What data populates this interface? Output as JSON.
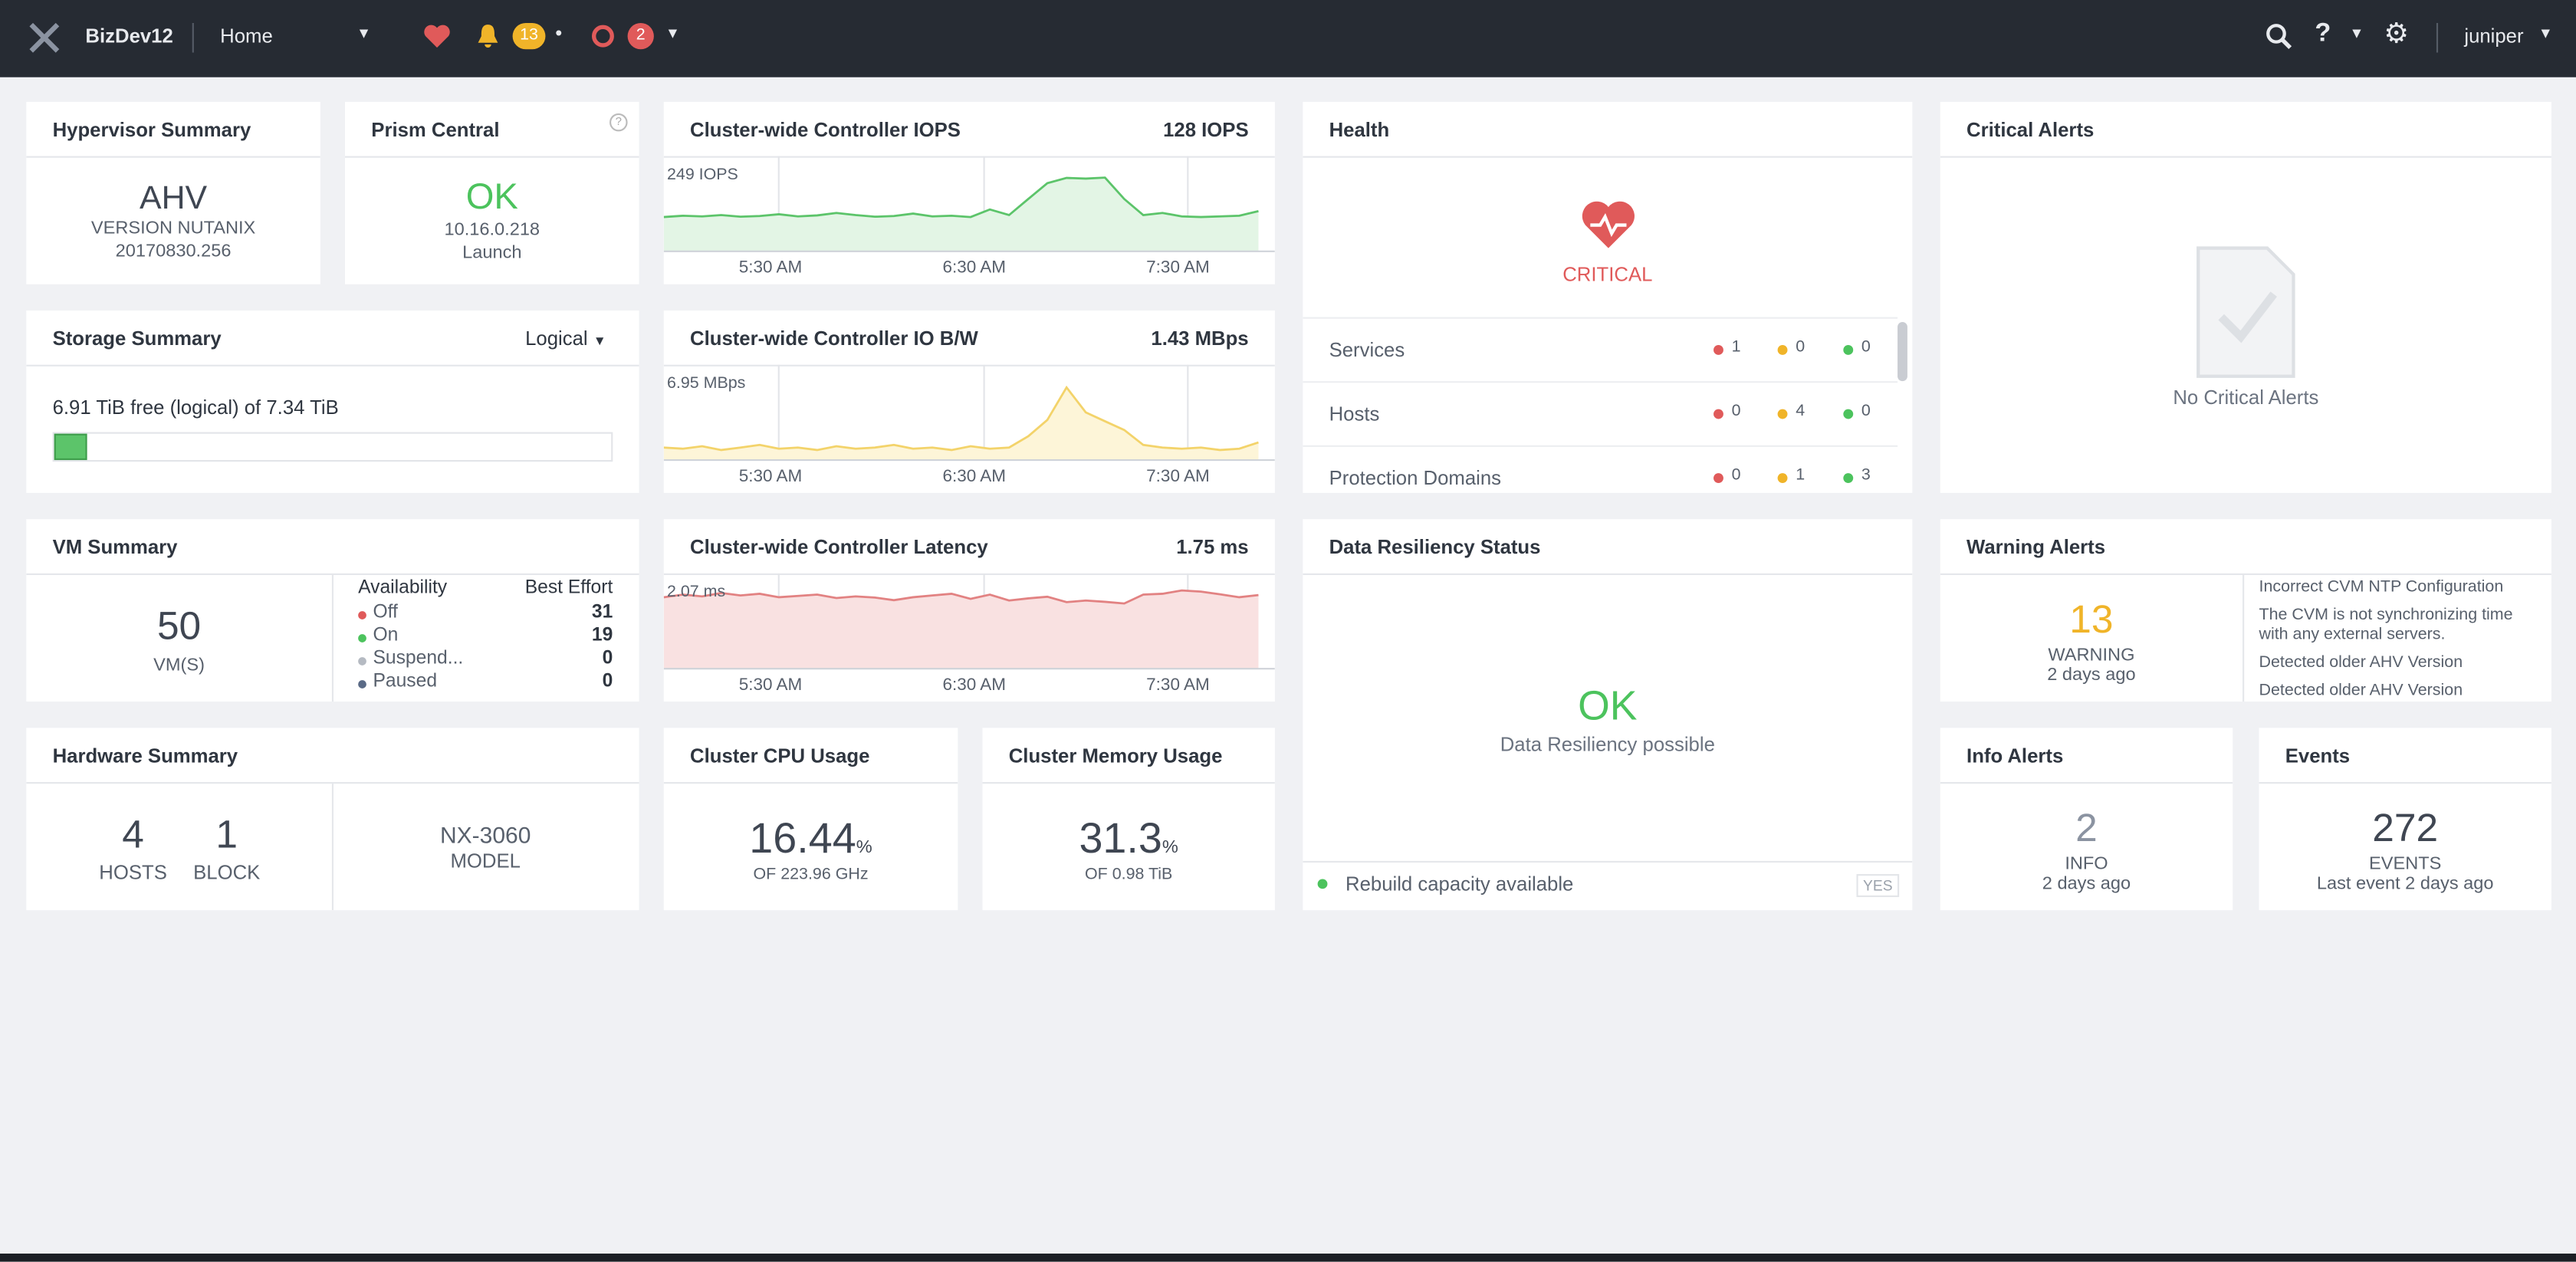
{
  "header": {
    "cluster": "BizDev12",
    "nav": "Home",
    "alerts_badge": "13",
    "errors_badge": "2",
    "user": "juniper"
  },
  "hypervisor": {
    "title": "Hypervisor Summary",
    "name": "AHV",
    "version": "VERSION NUTANIX",
    "build": "20170830.256"
  },
  "prism": {
    "title": "Prism Central",
    "status": "OK",
    "ip": "10.16.0.218",
    "action": "Launch"
  },
  "iops": {
    "title": "Cluster-wide Controller IOPS",
    "current": "128 IOPS",
    "max": {
      "value": 249,
      "label": "249 IOPS"
    },
    "times": [
      "5:30 AM",
      "6:30 AM",
      "7:30 AM"
    ],
    "values": [
      98,
      102,
      100,
      104,
      99,
      101,
      106,
      100,
      103,
      110,
      104,
      99,
      101,
      108,
      100,
      102,
      98,
      120,
      104,
      150,
      195,
      210,
      208,
      211,
      150,
      104,
      110,
      100,
      98,
      100,
      102,
      115
    ]
  },
  "bandwidth": {
    "title": "Cluster-wide Controller IO B/W",
    "current": "1.43 MBps",
    "max": {
      "value": 6.95,
      "label": "6.95 MBps"
    },
    "times": [
      "5:30 AM",
      "6:30 AM",
      "7:30 AM"
    ],
    "values": [
      1.0,
      0.9,
      1.1,
      0.8,
      1.0,
      1.2,
      0.9,
      1.0,
      0.8,
      1.1,
      0.9,
      1.0,
      1.2,
      0.9,
      1.0,
      0.8,
      1.1,
      0.9,
      1.0,
      1.9,
      3.2,
      5.8,
      3.8,
      3.1,
      2.4,
      1.2,
      1.0,
      0.9,
      1.0,
      0.8,
      0.9,
      1.4
    ]
  },
  "latency": {
    "title": "Cluster-wide Controller Latency",
    "current": "1.75 ms",
    "max": {
      "value": 2.07,
      "label": "2.07 ms"
    },
    "times": [
      "5:30 AM",
      "6:30 AM",
      "7:30 AM"
    ],
    "values": [
      1.7,
      1.76,
      1.72,
      1.8,
      1.74,
      1.78,
      1.7,
      1.73,
      1.76,
      1.68,
      1.72,
      1.69,
      1.63,
      1.7,
      1.74,
      1.78,
      1.66,
      1.76,
      1.62,
      1.67,
      1.71,
      1.58,
      1.62,
      1.59,
      1.55,
      1.76,
      1.78,
      1.86,
      1.83,
      1.77,
      1.7,
      1.75
    ]
  },
  "health": {
    "title": "Health",
    "status": "CRITICAL",
    "rows": [
      {
        "label": "Services",
        "critical": 1,
        "warning": 0,
        "good": 0
      },
      {
        "label": "Hosts",
        "critical": 0,
        "warning": 4,
        "good": 0
      },
      {
        "label": "Protection Domains",
        "critical": 0,
        "warning": 1,
        "good": 3
      }
    ]
  },
  "critical_alerts": {
    "title": "Critical Alerts",
    "empty": "No Critical Alerts"
  },
  "storage": {
    "title": "Storage Summary",
    "mode": "Logical",
    "free": 6.91,
    "unit": "TiB",
    "free_text": "free (logical) of",
    "total": 7.34
  },
  "vm": {
    "title": "VM Summary",
    "count": 50,
    "count_label": "VM(S)",
    "col1": "Availability",
    "col2": "Best Effort",
    "rows": [
      {
        "label": "Off",
        "value": 31,
        "color": "#e05a5a"
      },
      {
        "label": "On",
        "value": 19,
        "color": "#4cc35d"
      },
      {
        "label": "Suspend...",
        "value": 0,
        "color": "#b5bac2"
      },
      {
        "label": "Paused",
        "value": 0,
        "color": "#5a6a86"
      }
    ]
  },
  "resiliency": {
    "title": "Data Resiliency Status",
    "status": "OK",
    "subtitle": "Data Resiliency possible",
    "footer": "Rebuild capacity available",
    "footer_value": "YES"
  },
  "warning_alerts": {
    "title": "Warning Alerts",
    "count": 13,
    "label": "WARNING",
    "time": "2 days ago",
    "items": [
      "Incorrect CVM NTP Configuration",
      "The CVM is not synchronizing time with any external servers.",
      "Detected older AHV Version",
      "Detected older AHV Version"
    ]
  },
  "hardware": {
    "title": "Hardware Summary",
    "hosts": 4,
    "hosts_label": "HOSTS",
    "blocks": 1,
    "blocks_label": "BLOCK",
    "model": "NX-3060",
    "model_label": "MODEL"
  },
  "cpu": {
    "title": "Cluster CPU Usage",
    "value": 16.44,
    "unit": "%",
    "of": "OF 223.96 GHz"
  },
  "memory": {
    "title": "Cluster Memory Usage",
    "value": 31.3,
    "unit": "%",
    "of": "OF 0.98 TiB"
  },
  "info_alerts": {
    "title": "Info Alerts",
    "count": 2,
    "label": "INFO",
    "time": "2 days ago"
  },
  "events": {
    "title": "Events",
    "count": 272,
    "label": "EVENTS",
    "time": "Last event 2 days ago"
  }
}
